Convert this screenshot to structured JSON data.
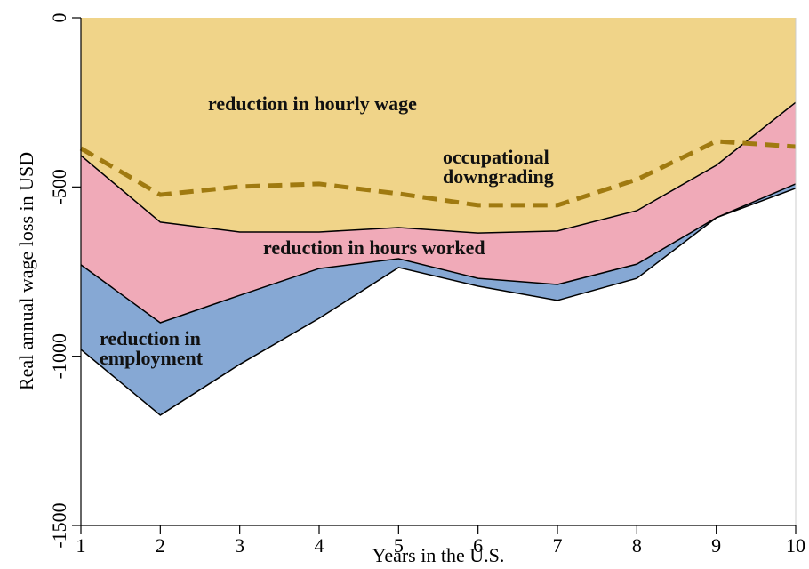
{
  "chart_data": {
    "type": "area",
    "stacked": true,
    "x_label": "Years in the U.S.",
    "y_label": "Real annual wage loss in USD",
    "x": [
      1,
      2,
      3,
      4,
      5,
      6,
      7,
      8,
      9,
      10
    ],
    "xlim": [
      1,
      10
    ],
    "xticks": [
      1,
      2,
      3,
      4,
      5,
      6,
      7,
      8,
      9,
      10
    ],
    "ylim": [
      -1500,
      0
    ],
    "yticks": [
      0,
      -500,
      -1000,
      -1500
    ],
    "series": [
      {
        "name": "reduction in hourly wage",
        "color": "#f0d489",
        "values": [
          -407,
          -604,
          -633,
          -633,
          -620,
          -636,
          -630,
          -570,
          -436,
          -250
        ]
      },
      {
        "name": "reduction in hours worked",
        "color": "#f0aab8",
        "values": [
          -323,
          -297,
          -187,
          -108,
          -92,
          -134,
          -158,
          -158,
          -155,
          -241
        ]
      },
      {
        "name": "reduction in employment",
        "color": "#86a8d4",
        "values": [
          -250,
          -273,
          -204,
          -147,
          -26,
          -23,
          -47,
          -42,
          0,
          -13
        ]
      },
      {
        "name": "occupational downgrading",
        "color": "#a07a10",
        "stacked": false,
        "dashed": true,
        "values": [
          -386,
          -523,
          -499,
          -491,
          -520,
          -554,
          -554,
          -478,
          -365,
          -381
        ]
      }
    ]
  }
}
